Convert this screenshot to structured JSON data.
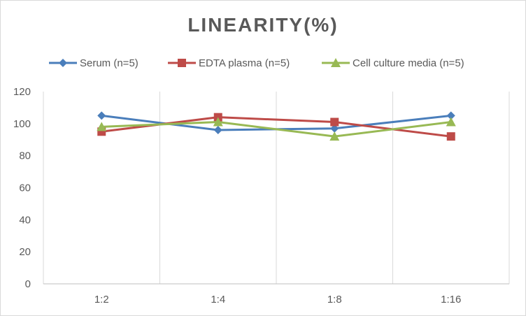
{
  "chart_data": {
    "type": "line",
    "title": "LINEARITY(%)",
    "categories": [
      "1:2",
      "1:4",
      "1:8",
      "1:16"
    ],
    "ylim": [
      0,
      120
    ],
    "yticks": [
      0,
      20,
      40,
      60,
      80,
      100,
      120
    ],
    "grid": "vertical",
    "legend_position": "top",
    "series": [
      {
        "name": "Serum (n=5)",
        "color": "#4a7ebb",
        "marker": "diamond",
        "values": [
          105,
          96,
          97,
          105
        ]
      },
      {
        "name": "EDTA plasma (n=5)",
        "color": "#be4b48",
        "marker": "square",
        "values": [
          95,
          104,
          101,
          92
        ]
      },
      {
        "name": "Cell culture media (n=5)",
        "color": "#98b954",
        "marker": "triangle",
        "values": [
          98,
          101,
          92,
          101
        ]
      }
    ]
  }
}
